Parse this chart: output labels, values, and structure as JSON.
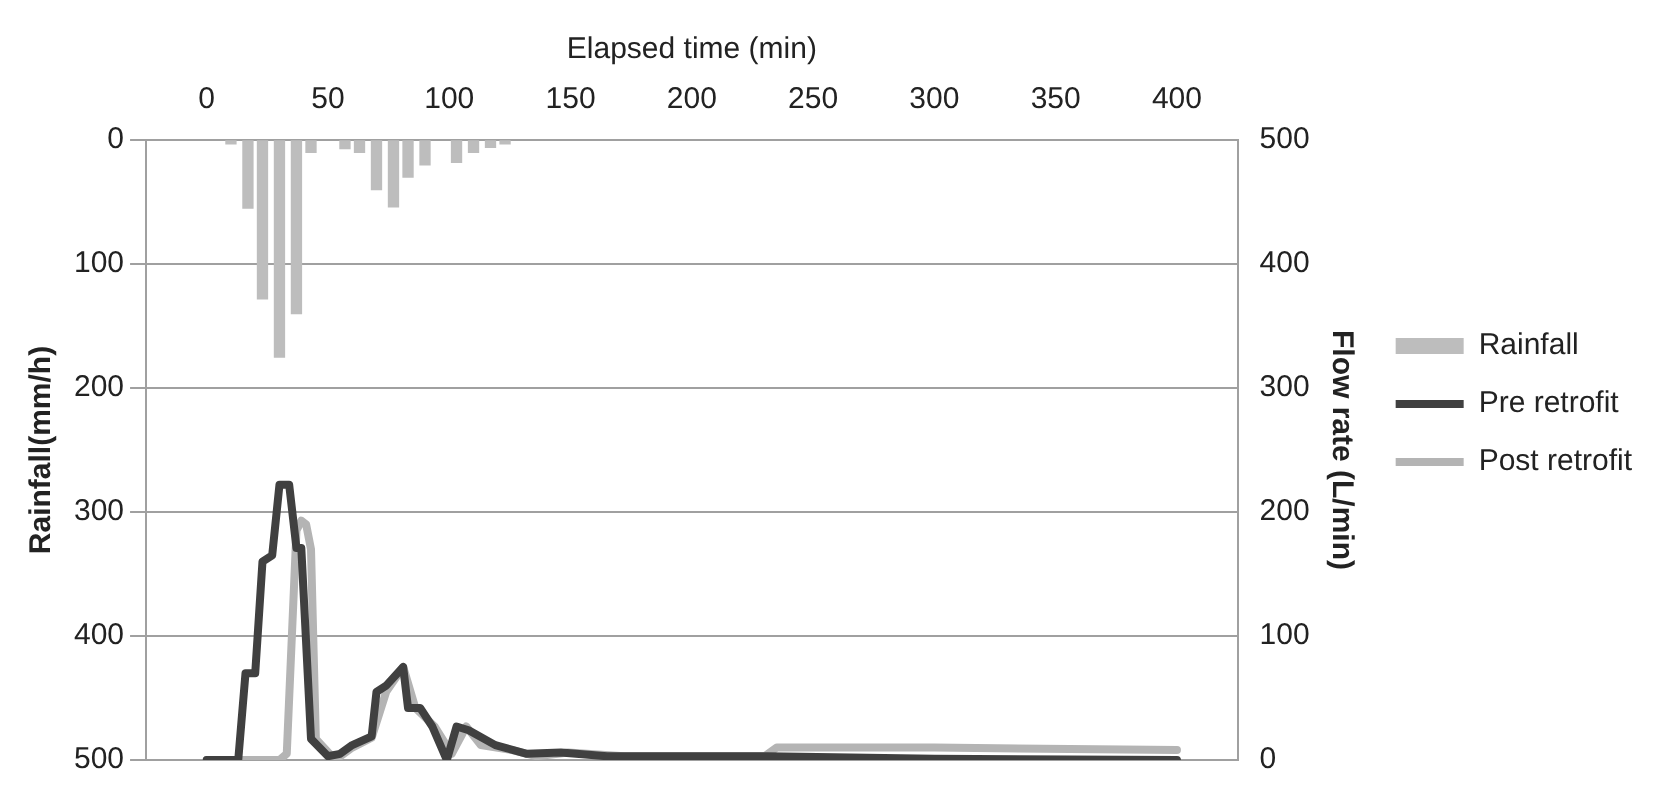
{
  "chart_data": {
    "type": "line",
    "xlabel": "Elapsed time (min)",
    "ylabel": "Rainfall(mm/h)",
    "y2label": "Flow rate (L/min)",
    "xlim": [
      0,
      400
    ],
    "xticks": [
      0,
      50,
      100,
      150,
      200,
      250,
      300,
      350,
      400
    ],
    "ylim": [
      500,
      0
    ],
    "yticks": [
      0,
      100,
      200,
      300,
      400,
      500
    ],
    "y2lim": [
      0,
      500
    ],
    "y2ticks": [
      0,
      100,
      200,
      300,
      400,
      500
    ],
    "grid": "y",
    "legend": "right",
    "marker": "none",
    "line_style": "solid",
    "series": [
      {
        "name": "Rainfall",
        "type": "bar",
        "axis": "y",
        "color": "#bdbdbd",
        "x": [
          10,
          17,
          23,
          30,
          37,
          43,
          57,
          63,
          70,
          77,
          83,
          90,
          103,
          110,
          117,
          123
        ],
        "values": [
          3,
          55,
          128,
          175,
          140,
          10,
          7,
          10,
          40,
          54,
          30,
          20,
          18,
          10,
          6,
          3
        ]
      },
      {
        "name": "Pre retrofit",
        "axis": "y2",
        "color": "#404040",
        "x": [
          0,
          13,
          16,
          20,
          23,
          27,
          30,
          34,
          37,
          39,
          43,
          50,
          55,
          60,
          68,
          70,
          74,
          81,
          83,
          88,
          93,
          99,
          103,
          108,
          119,
          132,
          146,
          165,
          231,
          300,
          400
        ],
        "values": [
          0,
          0,
          70,
          70,
          160,
          165,
          222,
          222,
          171,
          171,
          17,
          3,
          5,
          12,
          19,
          55,
          60,
          75,
          42,
          42,
          27,
          0,
          27,
          24,
          12,
          5,
          6,
          3,
          3,
          1,
          0
        ]
      },
      {
        "name": "Post retrofit",
        "axis": "y2",
        "color": "#b4b4b4",
        "x": [
          0,
          30,
          33,
          37,
          39,
          41,
          43,
          45,
          53,
          60,
          68,
          74,
          81,
          86,
          94,
          101,
          107,
          113,
          126,
          136,
          149,
          172,
          230,
          235,
          300,
          400
        ],
        "values": [
          0,
          0,
          5,
          185,
          193,
          190,
          170,
          17,
          0,
          10,
          18,
          55,
          75,
          42,
          27,
          5,
          27,
          12,
          8,
          3,
          6,
          3,
          3,
          10,
          10,
          8
        ]
      }
    ]
  }
}
